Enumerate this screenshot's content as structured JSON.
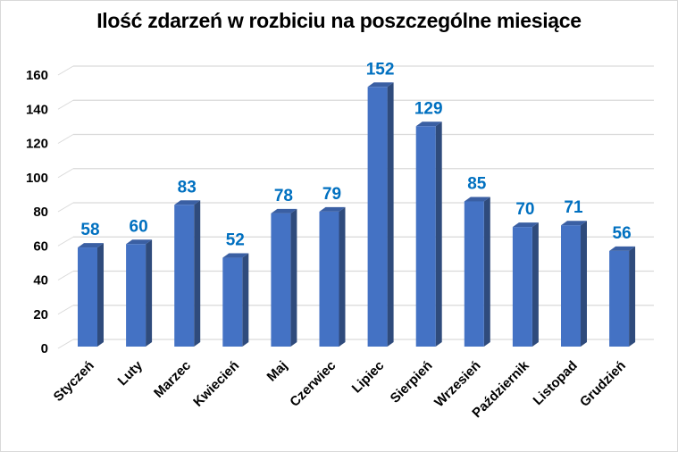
{
  "chart_data": {
    "type": "bar",
    "style": "3d-column",
    "title": "Ilość zdarzeń w rozbiciu na poszczególne miesiące",
    "xlabel": "",
    "ylabel": "",
    "categories": [
      "Styczeń",
      "Luty",
      "Marzec",
      "Kwiecień",
      "Maj",
      "Czerwiec",
      "Lipiec",
      "Sierpień",
      "Wrzesień",
      "Październik",
      "Listopad",
      "Grudzień"
    ],
    "values": [
      58,
      60,
      83,
      52,
      78,
      79,
      152,
      129,
      85,
      70,
      71,
      56
    ],
    "ylim": [
      0,
      160
    ],
    "yticks": [
      0,
      20,
      40,
      60,
      80,
      100,
      120,
      140,
      160
    ],
    "grid": true,
    "legend": null,
    "data_labels": true,
    "colors": {
      "bar_front": "#4472c4",
      "bar_side": "#2f4b7c",
      "bar_top": "#3a5fa3",
      "data_label": "#0070c0",
      "gridline": "#d9d9d9"
    }
  }
}
